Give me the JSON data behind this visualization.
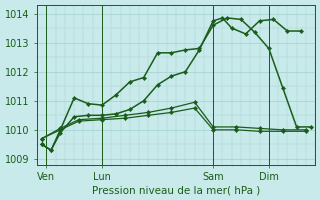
{
  "title": "Pression niveau de la mer( hPa )",
  "bg_color": "#c8eaea",
  "grid_color": "#a8d4d4",
  "line_color": "#1a5c1a",
  "ylim": [
    1008.8,
    1014.3
  ],
  "yticks": [
    1009,
    1010,
    1011,
    1012,
    1013,
    1014
  ],
  "xtick_labels": [
    "Ven",
    "Lun",
    "Sam",
    "Dim"
  ],
  "xtick_positions": [
    2,
    14,
    38,
    50
  ],
  "vline_positions": [
    2,
    14,
    38,
    50
  ],
  "xlim": [
    0,
    60
  ],
  "line1_x": [
    1,
    3,
    5,
    8,
    11,
    14,
    17,
    20,
    23,
    26,
    29,
    32,
    35,
    38,
    41,
    44,
    47,
    50,
    53,
    56,
    59
  ],
  "line1_y": [
    1009.5,
    1009.3,
    1010.0,
    1011.1,
    1010.9,
    1010.85,
    1011.2,
    1011.65,
    1011.8,
    1012.65,
    1012.65,
    1012.75,
    1012.8,
    1013.6,
    1013.85,
    1013.8,
    1013.35,
    1012.8,
    1011.45,
    1010.1,
    1010.1
  ],
  "line2_x": [
    1,
    3,
    5,
    8,
    11,
    14,
    17,
    20,
    23,
    26,
    29,
    32,
    35,
    38,
    40,
    42,
    45,
    48,
    51,
    54,
    57
  ],
  "line2_y": [
    1009.5,
    1009.3,
    1009.9,
    1010.45,
    1010.5,
    1010.5,
    1010.55,
    1010.7,
    1011.0,
    1011.55,
    1011.85,
    1012.0,
    1012.75,
    1013.75,
    1013.85,
    1013.5,
    1013.3,
    1013.75,
    1013.8,
    1013.4,
    1013.4
  ],
  "line3_x": [
    1,
    5,
    9,
    14,
    19,
    24,
    29,
    34,
    38,
    43,
    48,
    53,
    58
  ],
  "line3_y": [
    1009.7,
    1010.05,
    1010.35,
    1010.4,
    1010.5,
    1010.6,
    1010.75,
    1010.95,
    1010.1,
    1010.1,
    1010.05,
    1010.0,
    1010.0
  ],
  "line4_x": [
    1,
    5,
    9,
    14,
    19,
    24,
    29,
    34,
    38,
    43,
    48,
    53,
    58
  ],
  "line4_y": [
    1009.7,
    1010.0,
    1010.3,
    1010.35,
    1010.4,
    1010.5,
    1010.6,
    1010.75,
    1010.0,
    1010.0,
    1009.95,
    1009.95,
    1009.95
  ]
}
